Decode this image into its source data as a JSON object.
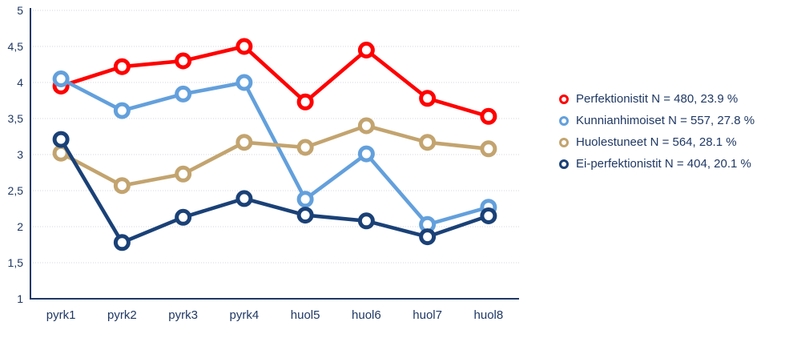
{
  "chart_data": {
    "type": "line",
    "categories": [
      "pyrk1",
      "pyrk2",
      "pyrk3",
      "pyrk4",
      "huol5",
      "huol6",
      "huol7",
      "huol8"
    ],
    "ylim": [
      1,
      5
    ],
    "yticks": [
      {
        "value": 5,
        "label": "5"
      },
      {
        "value": 4.5,
        "label": "4,5"
      },
      {
        "value": 4,
        "label": "4"
      },
      {
        "value": 3.5,
        "label": "3,5"
      },
      {
        "value": 3,
        "label": "3"
      },
      {
        "value": 2.5,
        "label": "2,5"
      },
      {
        "value": 2,
        "label": "2"
      },
      {
        "value": 1.5,
        "label": "1,5"
      },
      {
        "value": 1,
        "label": "1"
      }
    ],
    "grid": "horizontal-dotted",
    "legend_position": "right",
    "title": "",
    "xlabel": "",
    "ylabel": "",
    "series": [
      {
        "name": "Perfektionistit",
        "legend_label": "Perfektionistit N = 480, 23.9 %",
        "color": "#FF0000",
        "values": [
          3.95,
          4.22,
          4.3,
          4.5,
          3.73,
          4.45,
          3.78,
          3.53
        ]
      },
      {
        "name": "Kunnianhimoiset",
        "legend_label": "Kunnianhimoiset N = 557, 27.8 %",
        "color": "#63A0DC",
        "values": [
          4.05,
          3.61,
          3.84,
          4.0,
          2.38,
          3.01,
          2.03,
          2.27
        ]
      },
      {
        "name": "Huolestuneet",
        "legend_label": "Huolestuneet N = 564, 28.1 %",
        "color": "#C3A46F",
        "values": [
          3.02,
          2.57,
          2.73,
          3.17,
          3.1,
          3.4,
          3.17,
          3.08
        ]
      },
      {
        "name": "Ei-perfektionistit",
        "legend_label": "Ei-perfektionistit N = 404, 20.1 %",
        "color": "#1A4177",
        "values": [
          3.21,
          1.78,
          2.13,
          2.39,
          2.16,
          2.08,
          1.86,
          2.15
        ]
      }
    ],
    "colors": {
      "axis": "#1F3864",
      "tick_label": "#1F3864",
      "legend_text": "#1F3864",
      "gridline": "#D5D5E0",
      "marker_fill": "#FFFFFF",
      "background": "#FFFFFF"
    }
  }
}
